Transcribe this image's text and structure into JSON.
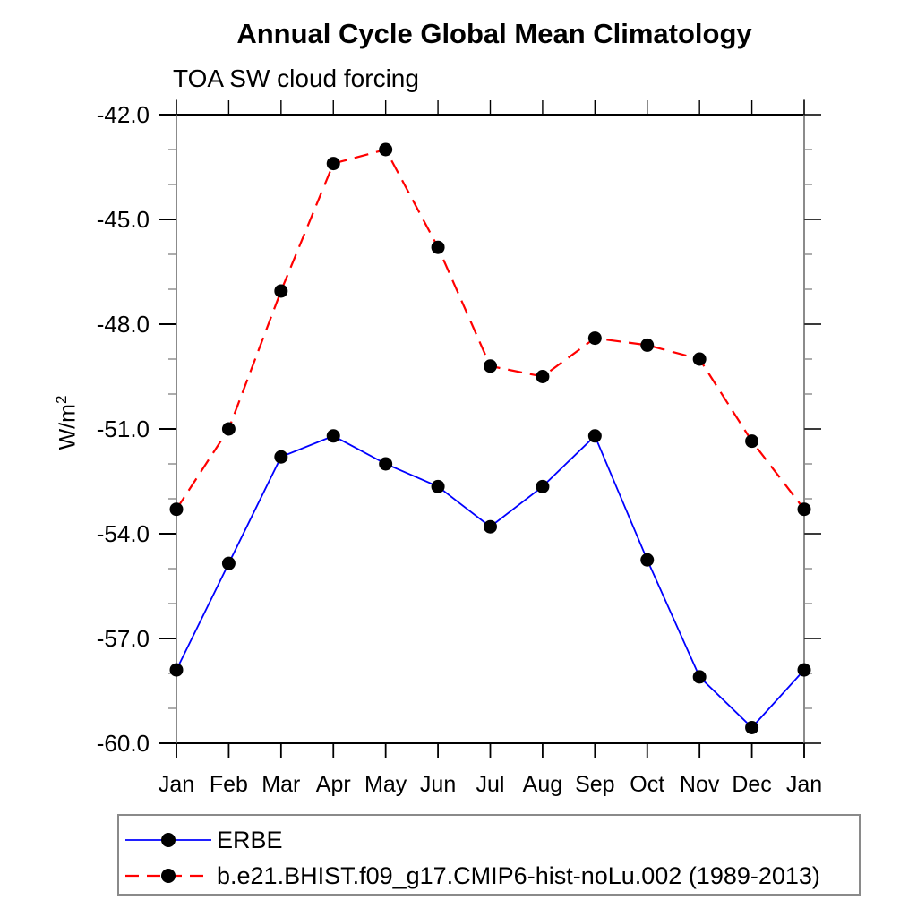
{
  "title": "Annual Cycle Global Mean Climatology",
  "subtitle": "TOA SW cloud forcing",
  "ylabel": {
    "text": "W/m",
    "sup": "2"
  },
  "colors": {
    "background": "#ffffff",
    "frame": "#000000",
    "vertical_axis": "#6e6e6e",
    "minor_tick": "#8a8a8a",
    "text": "#000000",
    "erbe_line": "#0000ff",
    "model_line": "#ff0000",
    "marker": "#000000",
    "legend_border": "#8a8a8a"
  },
  "chart_data": {
    "type": "line",
    "categories": [
      "Jan",
      "Feb",
      "Mar",
      "Apr",
      "May",
      "Jun",
      "Jul",
      "Aug",
      "Sep",
      "Oct",
      "Nov",
      "Dec",
      "Jan"
    ],
    "series": [
      {
        "name": "ERBE",
        "color": "#0000ff",
        "line_style": "solid",
        "marker": "filled-circle",
        "marker_color": "#000000",
        "values": [
          -57.9,
          -54.85,
          -51.8,
          -51.2,
          -52.0,
          -52.65,
          -53.8,
          -52.65,
          -51.2,
          -54.75,
          -58.1,
          -59.55,
          -57.9
        ]
      },
      {
        "name": "b.e21.BHIST.f09_g17.CMIP6-hist-noLu.002 (1989-2013)",
        "color": "#ff0000",
        "line_style": "dashed",
        "marker": "filled-circle",
        "marker_color": "#000000",
        "values": [
          -53.3,
          -51.0,
          -47.05,
          -43.4,
          -43.0,
          -45.8,
          -49.2,
          -49.5,
          -48.4,
          -48.6,
          -49.0,
          -51.35,
          -53.3
        ]
      }
    ],
    "xlabel": "",
    "ylabel": "W/m2",
    "ylim": [
      -60.0,
      -42.0
    ],
    "ytick_major": [
      -42,
      -45,
      -48,
      -51,
      -54,
      -57,
      -60
    ],
    "ytick_labels": [
      "-42.0",
      "-45.0",
      "-48.0",
      "-51.0",
      "-54.0",
      "-57.0",
      "-60.0"
    ],
    "ytick_minor_step": 1.0,
    "grid": false,
    "legend_position": "bottom"
  }
}
